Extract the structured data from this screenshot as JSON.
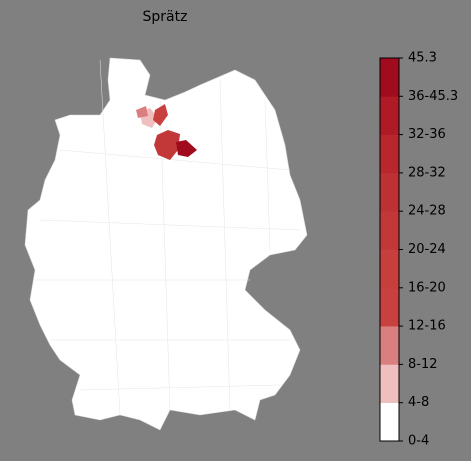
{
  "title": "Sprätz",
  "colorbar": {
    "labels": [
      "0-4",
      "4-8",
      "8-12",
      "12-16",
      "16-20",
      "20-24",
      "24-28",
      "28-32",
      "32-36",
      "36-45.3",
      "45.3"
    ],
    "colors": [
      "#ffffff",
      "#efbfbf",
      "#da7f80",
      "#c9413f",
      "#c63f3d",
      "#c23838",
      "#bd3134",
      "#b7272d",
      "#af1a27",
      "#a00b1d"
    ]
  }
}
